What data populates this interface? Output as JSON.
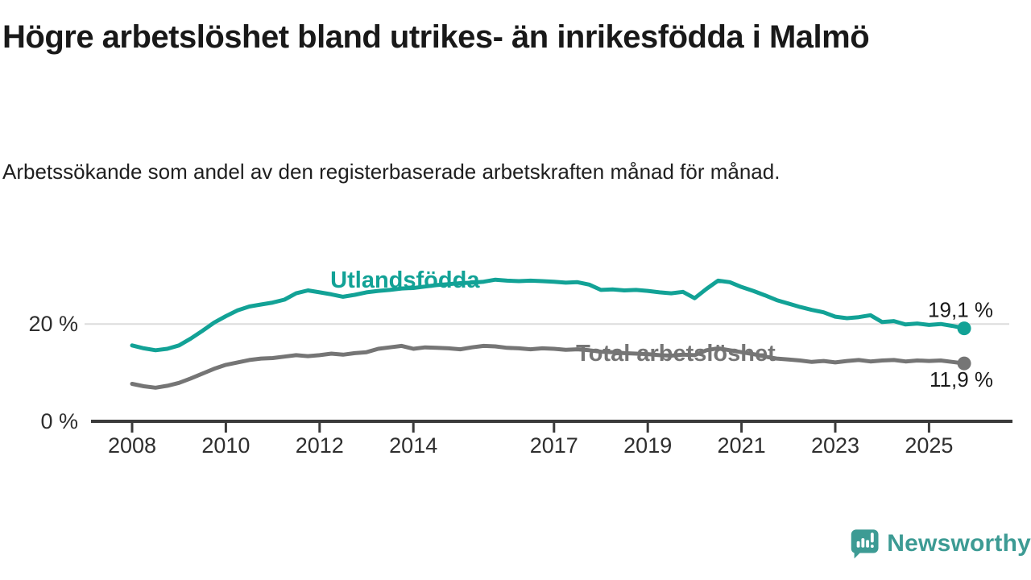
{
  "header": {
    "title": "Högre arbetslöshet bland utrikes- än inrikesfödda i Malmö",
    "subtitle": "Arbetssökande som andel av den registerbaserade arbetskraften månad för månad."
  },
  "chart_data": {
    "type": "line",
    "unit": "%",
    "grid": "single-horizontal-line-at-20",
    "legend_position": "inline-labels-on-lines",
    "xlim": [
      2007.1,
      2026.9
    ],
    "ylim": [
      0,
      36
    ],
    "x_ticks": [
      2008,
      2010,
      2012,
      2014,
      2017,
      2019,
      2021,
      2023,
      2025
    ],
    "y_ticks": [
      {
        "value": 20,
        "label": "20 %",
        "gridline": true
      },
      {
        "value": 0,
        "label": "0 %",
        "gridline": false
      }
    ],
    "x": [
      2008.0,
      2008.25,
      2008.5,
      2008.75,
      2009.0,
      2009.25,
      2009.5,
      2009.75,
      2010.0,
      2010.25,
      2010.5,
      2010.75,
      2011.0,
      2011.25,
      2011.5,
      2011.75,
      2012.0,
      2012.25,
      2012.5,
      2012.75,
      2013.0,
      2013.25,
      2013.5,
      2013.75,
      2014.0,
      2014.25,
      2014.5,
      2014.75,
      2015.0,
      2015.25,
      2015.5,
      2015.75,
      2016.0,
      2016.25,
      2016.5,
      2016.75,
      2017.0,
      2017.25,
      2017.5,
      2017.75,
      2018.0,
      2018.25,
      2018.5,
      2018.75,
      2019.0,
      2019.25,
      2019.5,
      2019.75,
      2020.0,
      2020.25,
      2020.5,
      2020.75,
      2021.0,
      2021.25,
      2021.5,
      2021.75,
      2022.0,
      2022.25,
      2022.5,
      2022.75,
      2023.0,
      2023.25,
      2023.5,
      2023.75,
      2024.0,
      2024.25,
      2024.5,
      2024.75,
      2025.0,
      2025.25,
      2025.5,
      2025.75
    ],
    "series": [
      {
        "name": "Utlandsfödda",
        "color": "#12a296",
        "end_value_label": "19,1 %",
        "end_label_side": "above",
        "label_anchor": {
          "x": 2012.23,
          "y": 29.1
        },
        "values": [
          15.6,
          15.0,
          14.6,
          14.9,
          15.6,
          17.0,
          18.6,
          20.3,
          21.6,
          22.8,
          23.6,
          24.0,
          24.4,
          25.0,
          26.3,
          26.9,
          26.5,
          26.1,
          25.6,
          26.0,
          26.5,
          26.8,
          27.0,
          27.3,
          27.4,
          27.7,
          28.0,
          28.2,
          28.4,
          28.5,
          28.7,
          29.1,
          28.9,
          28.8,
          28.9,
          28.8,
          28.7,
          28.5,
          28.6,
          28.1,
          27.0,
          27.1,
          26.9,
          27.0,
          26.8,
          26.5,
          26.3,
          26.6,
          25.3,
          27.2,
          28.9,
          28.6,
          27.6,
          26.8,
          25.9,
          24.9,
          24.2,
          23.5,
          22.9,
          22.4,
          21.5,
          21.2,
          21.4,
          21.8,
          20.4,
          20.6,
          19.9,
          20.1,
          19.8,
          20.0,
          19.6,
          19.1
        ]
      },
      {
        "name": "Total arbetslöshet",
        "color": "#757575",
        "end_value_label": "11,9 %",
        "end_label_side": "below",
        "label_anchor": {
          "x": 2017.47,
          "y": 14.05
        },
        "values": [
          7.7,
          7.2,
          6.9,
          7.3,
          7.9,
          8.8,
          9.8,
          10.8,
          11.6,
          12.1,
          12.6,
          12.9,
          13.0,
          13.3,
          13.6,
          13.4,
          13.6,
          13.9,
          13.7,
          14.0,
          14.2,
          14.9,
          15.2,
          15.5,
          14.9,
          15.2,
          15.1,
          15.0,
          14.8,
          15.2,
          15.5,
          15.4,
          15.1,
          15.0,
          14.8,
          15.0,
          14.9,
          14.7,
          14.8,
          14.6,
          14.3,
          14.2,
          14.0,
          13.9,
          13.8,
          13.6,
          13.5,
          13.7,
          13.6,
          14.6,
          15.0,
          14.6,
          14.2,
          13.8,
          13.3,
          12.9,
          12.7,
          12.5,
          12.2,
          12.4,
          12.1,
          12.4,
          12.6,
          12.3,
          12.5,
          12.6,
          12.3,
          12.5,
          12.4,
          12.5,
          12.2,
          11.9
        ]
      }
    ],
    "colors": {
      "axis": "#3a3a3a",
      "gridline": "#dcdcdc",
      "tick_text": "#2e2e2e",
      "value_label_text": "#1a1a1a"
    }
  },
  "footer": {
    "brand": "Newsworthy",
    "brand_color": "#3d9b94",
    "logo_icon": "newsworthy-speech-bubble-chart-icon"
  }
}
